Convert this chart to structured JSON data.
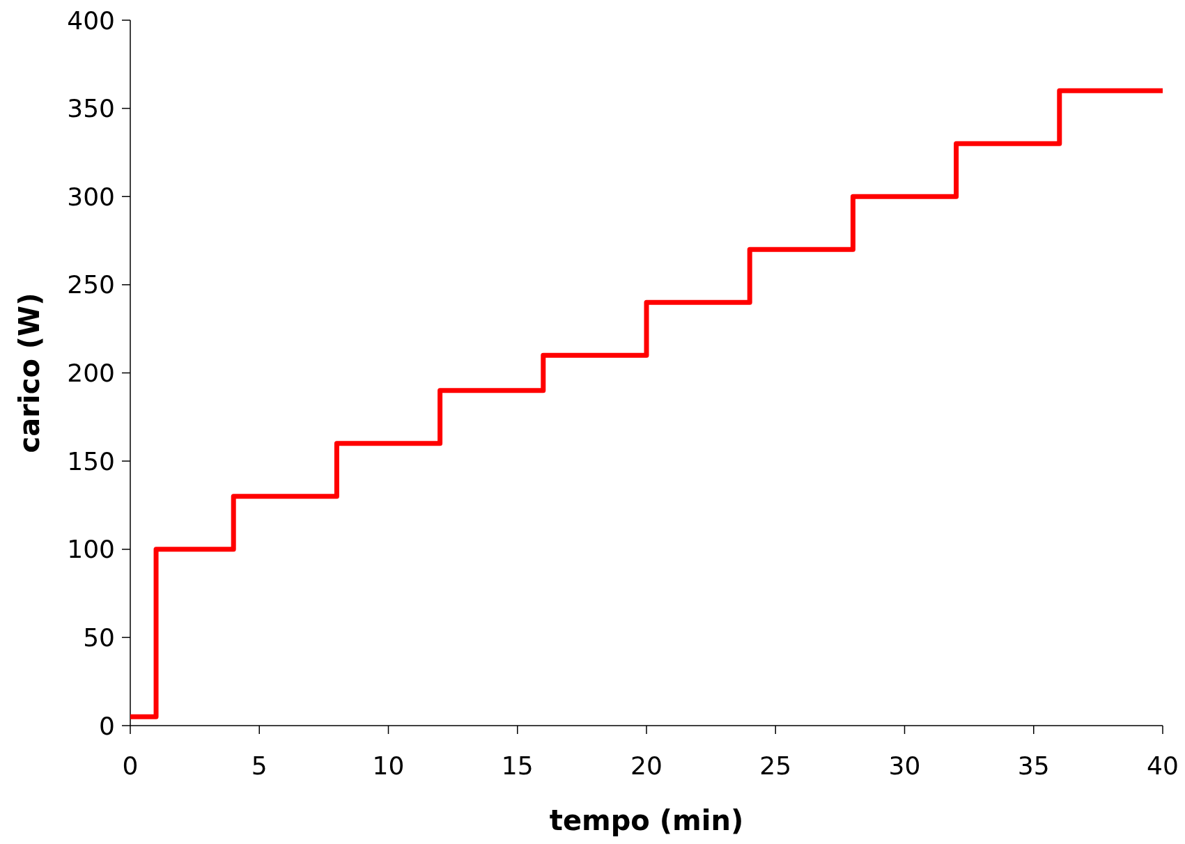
{
  "chart_data": {
    "type": "step",
    "xlabel": "tempo (min)",
    "ylabel": "carico (W)",
    "x": [
      0,
      1,
      4,
      8,
      12,
      16,
      20,
      24,
      28,
      32,
      36,
      40
    ],
    "series": [
      {
        "color": "#ff0000",
        "values": [
          5,
          100,
          130,
          160,
          190,
          210,
          240,
          270,
          300,
          330,
          360,
          360
        ]
      }
    ],
    "xlim": [
      0,
      40
    ],
    "xticks": [
      0,
      5,
      10,
      15,
      20,
      25,
      30,
      35,
      40
    ],
    "ylim": [
      0,
      400
    ],
    "yticks": [
      0,
      50,
      100,
      150,
      200,
      250,
      300,
      350,
      400
    ],
    "grid": false,
    "marker": "none",
    "line_style": "solid"
  }
}
